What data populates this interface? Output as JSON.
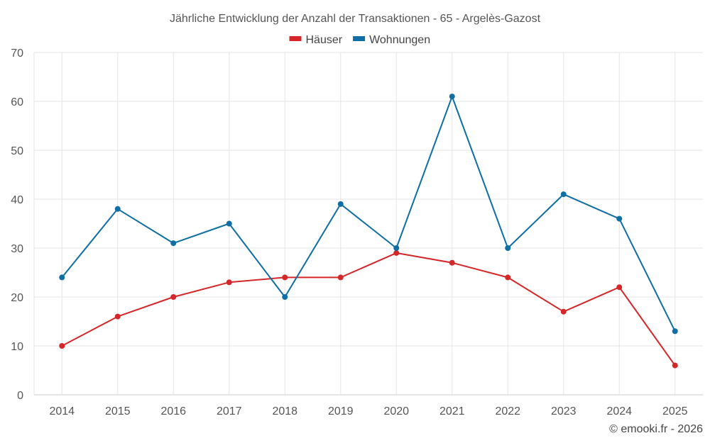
{
  "chart_data": {
    "type": "line",
    "title": "Jährliche Entwicklung der Anzahl der Transaktionen - 65 - Argelès-Gazost",
    "xlabel": "",
    "ylabel": "",
    "categories": [
      "2014",
      "2015",
      "2016",
      "2017",
      "2018",
      "2019",
      "2020",
      "2021",
      "2022",
      "2023",
      "2024",
      "2025"
    ],
    "ylim": [
      0,
      70
    ],
    "yticks": [
      0,
      10,
      20,
      30,
      40,
      50,
      60,
      70
    ],
    "grid": true,
    "legend_position": "top-center",
    "series": [
      {
        "name": "Häuser",
        "color": "#d62728",
        "values": [
          10,
          16,
          20,
          23,
          24,
          24,
          29,
          27,
          24,
          17,
          22,
          6
        ]
      },
      {
        "name": "Wohnungen",
        "color": "#0f6ea3",
        "values": [
          24,
          38,
          31,
          35,
          20,
          39,
          30,
          61,
          30,
          41,
          36,
          13
        ]
      }
    ]
  },
  "credit": "© emooki.fr - 2026"
}
